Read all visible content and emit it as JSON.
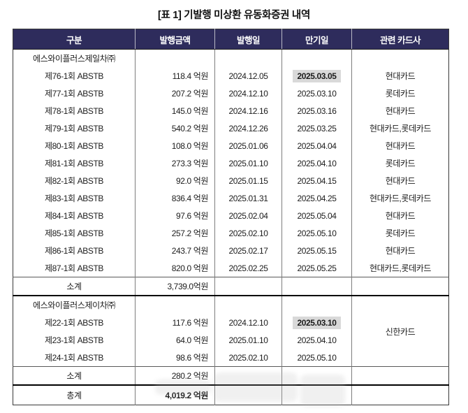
{
  "title": "[표 1] 기발행 미상환 유동화증권 내역",
  "colors": {
    "header_bg": "#2e2c5c",
    "highlight": "#d9d9d9",
    "header_text": "#ffffff"
  },
  "table": {
    "columns": [
      "구분",
      "발행금액",
      "발행일",
      "만기일",
      "관련 카드사"
    ],
    "sections": [
      {
        "company": "에스와이플러스제일차㈜",
        "rows": [
          {
            "name": "제76-1회 ABSTB",
            "amount": "118.4 억원",
            "issue_date": "2024.12.05",
            "maturity_date": "2025.03.05",
            "maturity_highlight": true,
            "card": "현대카드"
          },
          {
            "name": "제77-1회 ABSTB",
            "amount": "207.2 억원",
            "issue_date": "2024.12.10",
            "maturity_date": "2025.03.10",
            "maturity_highlight": false,
            "card": "롯데카드"
          },
          {
            "name": "제78-1회 ABSTB",
            "amount": "145.0 억원",
            "issue_date": "2024.12.16",
            "maturity_date": "2025.03.16",
            "maturity_highlight": false,
            "card": "현대카드"
          },
          {
            "name": "제79-1회 ABSTB",
            "amount": "540.2 억원",
            "issue_date": "2024.12.26",
            "maturity_date": "2025.03.25",
            "maturity_highlight": false,
            "card": "현대카드,롯데카드"
          },
          {
            "name": "제80-1회 ABSTB",
            "amount": "108.0 억원",
            "issue_date": "2025.01.06",
            "maturity_date": "2025.04.04",
            "maturity_highlight": false,
            "card": "현대카드"
          },
          {
            "name": "제81-1회 ABSTB",
            "amount": "273.3 억원",
            "issue_date": "2025.01.10",
            "maturity_date": "2025.04.10",
            "maturity_highlight": false,
            "card": "롯데카드"
          },
          {
            "name": "제82-1회 ABSTB",
            "amount": "92.0 억원",
            "issue_date": "2025.01.15",
            "maturity_date": "2025.04.15",
            "maturity_highlight": false,
            "card": "현대카드"
          },
          {
            "name": "제83-1회 ABSTB",
            "amount": "836.4 억원",
            "issue_date": "2025.01.31",
            "maturity_date": "2025.04.25",
            "maturity_highlight": false,
            "card": "현대카드,롯데카드"
          },
          {
            "name": "제84-1회 ABSTB",
            "amount": "97.6 억원",
            "issue_date": "2025.02.04",
            "maturity_date": "2025.05.04",
            "maturity_highlight": false,
            "card": "현대카드"
          },
          {
            "name": "제85-1회 ABSTB",
            "amount": "257.2 억원",
            "issue_date": "2025.02.10",
            "maturity_date": "2025.05.10",
            "maturity_highlight": false,
            "card": "롯데카드"
          },
          {
            "name": "제86-1회 ABSTB",
            "amount": "243.7 억원",
            "issue_date": "2025.02.17",
            "maturity_date": "2025.05.15",
            "maturity_highlight": false,
            "card": "현대카드"
          },
          {
            "name": "제87-1회 ABSTB",
            "amount": "820.0 억원",
            "issue_date": "2025.02.25",
            "maturity_date": "2025.05.25",
            "maturity_highlight": false,
            "card": "현대카드,롯데카드"
          }
        ],
        "subtotal": {
          "label": "소계",
          "amount": "3,739.0억원"
        }
      },
      {
        "company": "에스와이플러스제이차㈜",
        "merged_card": "신한카드",
        "rows": [
          {
            "name": "제22-1회 ABSTB",
            "amount": "117.6 억원",
            "issue_date": "2024.12.10",
            "maturity_date": "2025.03.10",
            "maturity_highlight": true
          },
          {
            "name": "제23-1회 ABSTB",
            "amount": "64.0 억원",
            "issue_date": "2025.01.10",
            "maturity_date": "2025.04.10",
            "maturity_highlight": false
          },
          {
            "name": "제24-1회 ABSTB",
            "amount": "98.6 억원",
            "issue_date": "2025.02.10",
            "maturity_date": "2025.05.10",
            "maturity_highlight": false
          }
        ],
        "subtotal": {
          "label": "소계",
          "amount": "280.2 억원"
        }
      }
    ],
    "total": {
      "label": "총계",
      "amount": "4,019.2 억원"
    }
  }
}
